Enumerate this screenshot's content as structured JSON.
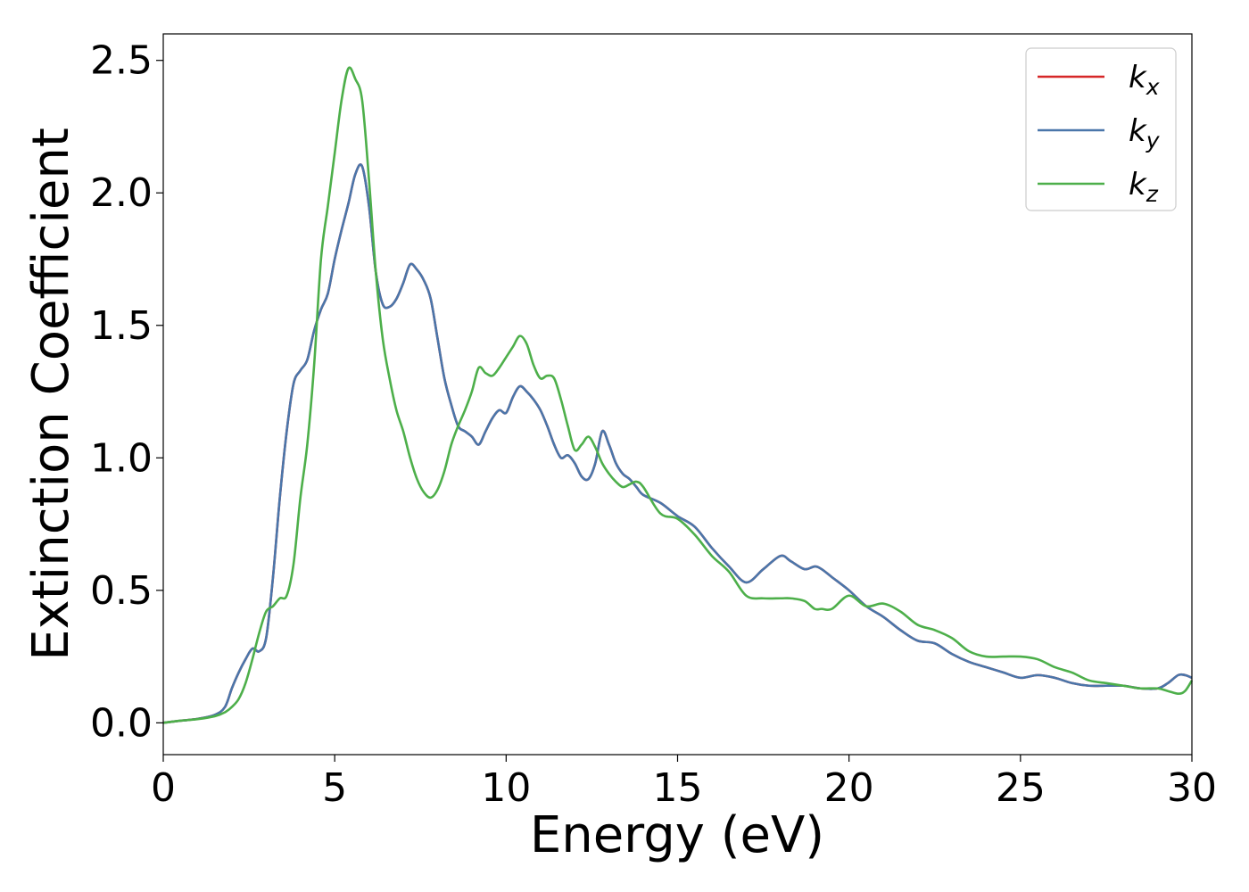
{
  "chart_data": {
    "type": "line",
    "title": "",
    "xlabel": "Energy (eV)",
    "ylabel": "Extinction Coefficient",
    "xlim": [
      0,
      30
    ],
    "ylim": [
      -0.12,
      2.6
    ],
    "xticks": [
      0,
      5,
      10,
      15,
      20,
      25,
      30
    ],
    "xtick_labels": [
      "0",
      "5",
      "10",
      "15",
      "20",
      "25",
      "30"
    ],
    "yticks": [
      0.0,
      0.5,
      1.0,
      1.5,
      2.0,
      2.5
    ],
    "ytick_labels": [
      "0.0",
      "0.5",
      "1.0",
      "1.5",
      "2.0",
      "2.5"
    ],
    "grid": false,
    "legend_position": "top-right",
    "series": [
      {
        "name": "k_x",
        "label_base": "k",
        "label_sub": "x",
        "color": "#d62728",
        "x": [
          0,
          0.5,
          1.0,
          1.5,
          1.8,
          2.0,
          2.2,
          2.4,
          2.6,
          2.8,
          3.0,
          3.2,
          3.4,
          3.6,
          3.8,
          4.0,
          4.2,
          4.4,
          4.6,
          4.8,
          5.0,
          5.2,
          5.4,
          5.6,
          5.8,
          6.0,
          6.2,
          6.4,
          6.6,
          6.8,
          7.0,
          7.2,
          7.4,
          7.6,
          7.8,
          8.0,
          8.2,
          8.4,
          8.6,
          8.8,
          9.0,
          9.2,
          9.4,
          9.6,
          9.8,
          10.0,
          10.2,
          10.4,
          10.6,
          10.8,
          11.0,
          11.2,
          11.4,
          11.6,
          11.8,
          12.0,
          12.2,
          12.4,
          12.6,
          12.8,
          13.0,
          13.2,
          13.4,
          13.6,
          13.8,
          14.0,
          14.5,
          15.0,
          15.5,
          16.0,
          16.5,
          17.0,
          17.5,
          18.0,
          18.3,
          18.7,
          19.0,
          19.2,
          19.5,
          20.0,
          20.5,
          21.0,
          21.5,
          22.0,
          22.5,
          23.0,
          23.5,
          24.0,
          24.5,
          25.0,
          25.5,
          26.0,
          26.5,
          27.0,
          27.5,
          28.0,
          28.5,
          29.0,
          29.3,
          29.6,
          29.8,
          30.0
        ],
        "values": [
          0,
          0.008,
          0.015,
          0.03,
          0.06,
          0.13,
          0.19,
          0.24,
          0.28,
          0.27,
          0.32,
          0.55,
          0.85,
          1.1,
          1.28,
          1.33,
          1.37,
          1.48,
          1.56,
          1.62,
          1.75,
          1.86,
          1.96,
          2.07,
          2.1,
          1.95,
          1.7,
          1.58,
          1.57,
          1.6,
          1.66,
          1.73,
          1.71,
          1.67,
          1.6,
          1.45,
          1.3,
          1.2,
          1.12,
          1.1,
          1.08,
          1.05,
          1.1,
          1.15,
          1.18,
          1.17,
          1.23,
          1.27,
          1.25,
          1.22,
          1.18,
          1.12,
          1.05,
          1.0,
          1.01,
          0.98,
          0.93,
          0.92,
          0.98,
          1.1,
          1.05,
          0.98,
          0.94,
          0.92,
          0.89,
          0.86,
          0.83,
          0.78,
          0.74,
          0.66,
          0.59,
          0.53,
          0.58,
          0.63,
          0.61,
          0.58,
          0.59,
          0.58,
          0.55,
          0.5,
          0.44,
          0.4,
          0.35,
          0.31,
          0.3,
          0.26,
          0.23,
          0.21,
          0.19,
          0.17,
          0.18,
          0.17,
          0.15,
          0.14,
          0.14,
          0.14,
          0.13,
          0.13,
          0.15,
          0.18,
          0.18,
          0.17
        ]
      },
      {
        "name": "k_y",
        "label_base": "k",
        "label_sub": "y",
        "color": "#4a76aa",
        "x": [
          0,
          0.5,
          1.0,
          1.5,
          1.8,
          2.0,
          2.2,
          2.4,
          2.6,
          2.8,
          3.0,
          3.2,
          3.4,
          3.6,
          3.8,
          4.0,
          4.2,
          4.4,
          4.6,
          4.8,
          5.0,
          5.2,
          5.4,
          5.6,
          5.8,
          6.0,
          6.2,
          6.4,
          6.6,
          6.8,
          7.0,
          7.2,
          7.4,
          7.6,
          7.8,
          8.0,
          8.2,
          8.4,
          8.6,
          8.8,
          9.0,
          9.2,
          9.4,
          9.6,
          9.8,
          10.0,
          10.2,
          10.4,
          10.6,
          10.8,
          11.0,
          11.2,
          11.4,
          11.6,
          11.8,
          12.0,
          12.2,
          12.4,
          12.6,
          12.8,
          13.0,
          13.2,
          13.4,
          13.6,
          13.8,
          14.0,
          14.5,
          15.0,
          15.5,
          16.0,
          16.5,
          17.0,
          17.5,
          18.0,
          18.3,
          18.7,
          19.0,
          19.2,
          19.5,
          20.0,
          20.5,
          21.0,
          21.5,
          22.0,
          22.5,
          23.0,
          23.5,
          24.0,
          24.5,
          25.0,
          25.5,
          26.0,
          26.5,
          27.0,
          27.5,
          28.0,
          28.5,
          29.0,
          29.3,
          29.6,
          29.8,
          30.0
        ],
        "values": [
          0,
          0.008,
          0.015,
          0.03,
          0.06,
          0.13,
          0.19,
          0.24,
          0.28,
          0.27,
          0.32,
          0.55,
          0.85,
          1.1,
          1.28,
          1.33,
          1.37,
          1.48,
          1.56,
          1.62,
          1.75,
          1.86,
          1.96,
          2.07,
          2.1,
          1.95,
          1.7,
          1.58,
          1.57,
          1.6,
          1.66,
          1.73,
          1.71,
          1.67,
          1.6,
          1.45,
          1.3,
          1.2,
          1.12,
          1.1,
          1.08,
          1.05,
          1.1,
          1.15,
          1.18,
          1.17,
          1.23,
          1.27,
          1.25,
          1.22,
          1.18,
          1.12,
          1.05,
          1.0,
          1.01,
          0.98,
          0.93,
          0.92,
          0.98,
          1.1,
          1.05,
          0.98,
          0.94,
          0.92,
          0.89,
          0.86,
          0.83,
          0.78,
          0.74,
          0.66,
          0.59,
          0.53,
          0.58,
          0.63,
          0.61,
          0.58,
          0.59,
          0.58,
          0.55,
          0.5,
          0.44,
          0.4,
          0.35,
          0.31,
          0.3,
          0.26,
          0.23,
          0.21,
          0.19,
          0.17,
          0.18,
          0.17,
          0.15,
          0.14,
          0.14,
          0.14,
          0.13,
          0.13,
          0.15,
          0.18,
          0.18,
          0.17
        ]
      },
      {
        "name": "k_z",
        "label_base": "k",
        "label_sub": "z",
        "color": "#4daf4a",
        "x": [
          0,
          0.5,
          1.0,
          1.5,
          1.8,
          2.0,
          2.2,
          2.4,
          2.6,
          2.8,
          3.0,
          3.2,
          3.4,
          3.6,
          3.8,
          4.0,
          4.2,
          4.4,
          4.6,
          4.8,
          5.0,
          5.2,
          5.4,
          5.6,
          5.8,
          6.0,
          6.2,
          6.4,
          6.6,
          6.8,
          7.0,
          7.2,
          7.4,
          7.6,
          7.8,
          8.0,
          8.2,
          8.4,
          8.6,
          8.8,
          9.0,
          9.2,
          9.4,
          9.6,
          9.8,
          10.0,
          10.2,
          10.4,
          10.6,
          10.8,
          11.0,
          11.2,
          11.4,
          11.6,
          11.8,
          12.0,
          12.2,
          12.4,
          12.6,
          12.8,
          13.0,
          13.2,
          13.4,
          13.6,
          13.8,
          14.0,
          14.5,
          15.0,
          15.5,
          16.0,
          16.5,
          17.0,
          17.5,
          18.0,
          18.3,
          18.7,
          19.0,
          19.2,
          19.5,
          20.0,
          20.5,
          21.0,
          21.5,
          22.0,
          22.5,
          23.0,
          23.5,
          24.0,
          24.5,
          25.0,
          25.5,
          26.0,
          26.5,
          27.0,
          27.5,
          28.0,
          28.5,
          29.0,
          29.3,
          29.6,
          29.8,
          30.0
        ],
        "values": [
          0,
          0.008,
          0.014,
          0.025,
          0.04,
          0.06,
          0.09,
          0.15,
          0.24,
          0.34,
          0.42,
          0.44,
          0.47,
          0.48,
          0.6,
          0.85,
          1.05,
          1.35,
          1.75,
          1.95,
          2.15,
          2.35,
          2.47,
          2.43,
          2.35,
          2.05,
          1.7,
          1.45,
          1.3,
          1.18,
          1.1,
          1.0,
          0.92,
          0.87,
          0.85,
          0.88,
          0.95,
          1.05,
          1.12,
          1.18,
          1.25,
          1.34,
          1.32,
          1.31,
          1.34,
          1.38,
          1.42,
          1.46,
          1.43,
          1.35,
          1.3,
          1.31,
          1.3,
          1.22,
          1.12,
          1.03,
          1.05,
          1.08,
          1.04,
          0.98,
          0.94,
          0.91,
          0.89,
          0.9,
          0.91,
          0.89,
          0.79,
          0.77,
          0.71,
          0.63,
          0.57,
          0.48,
          0.47,
          0.47,
          0.47,
          0.46,
          0.43,
          0.43,
          0.43,
          0.48,
          0.44,
          0.45,
          0.42,
          0.37,
          0.35,
          0.32,
          0.27,
          0.25,
          0.25,
          0.25,
          0.24,
          0.21,
          0.19,
          0.16,
          0.15,
          0.14,
          0.13,
          0.13,
          0.12,
          0.11,
          0.12,
          0.16
        ]
      }
    ]
  }
}
